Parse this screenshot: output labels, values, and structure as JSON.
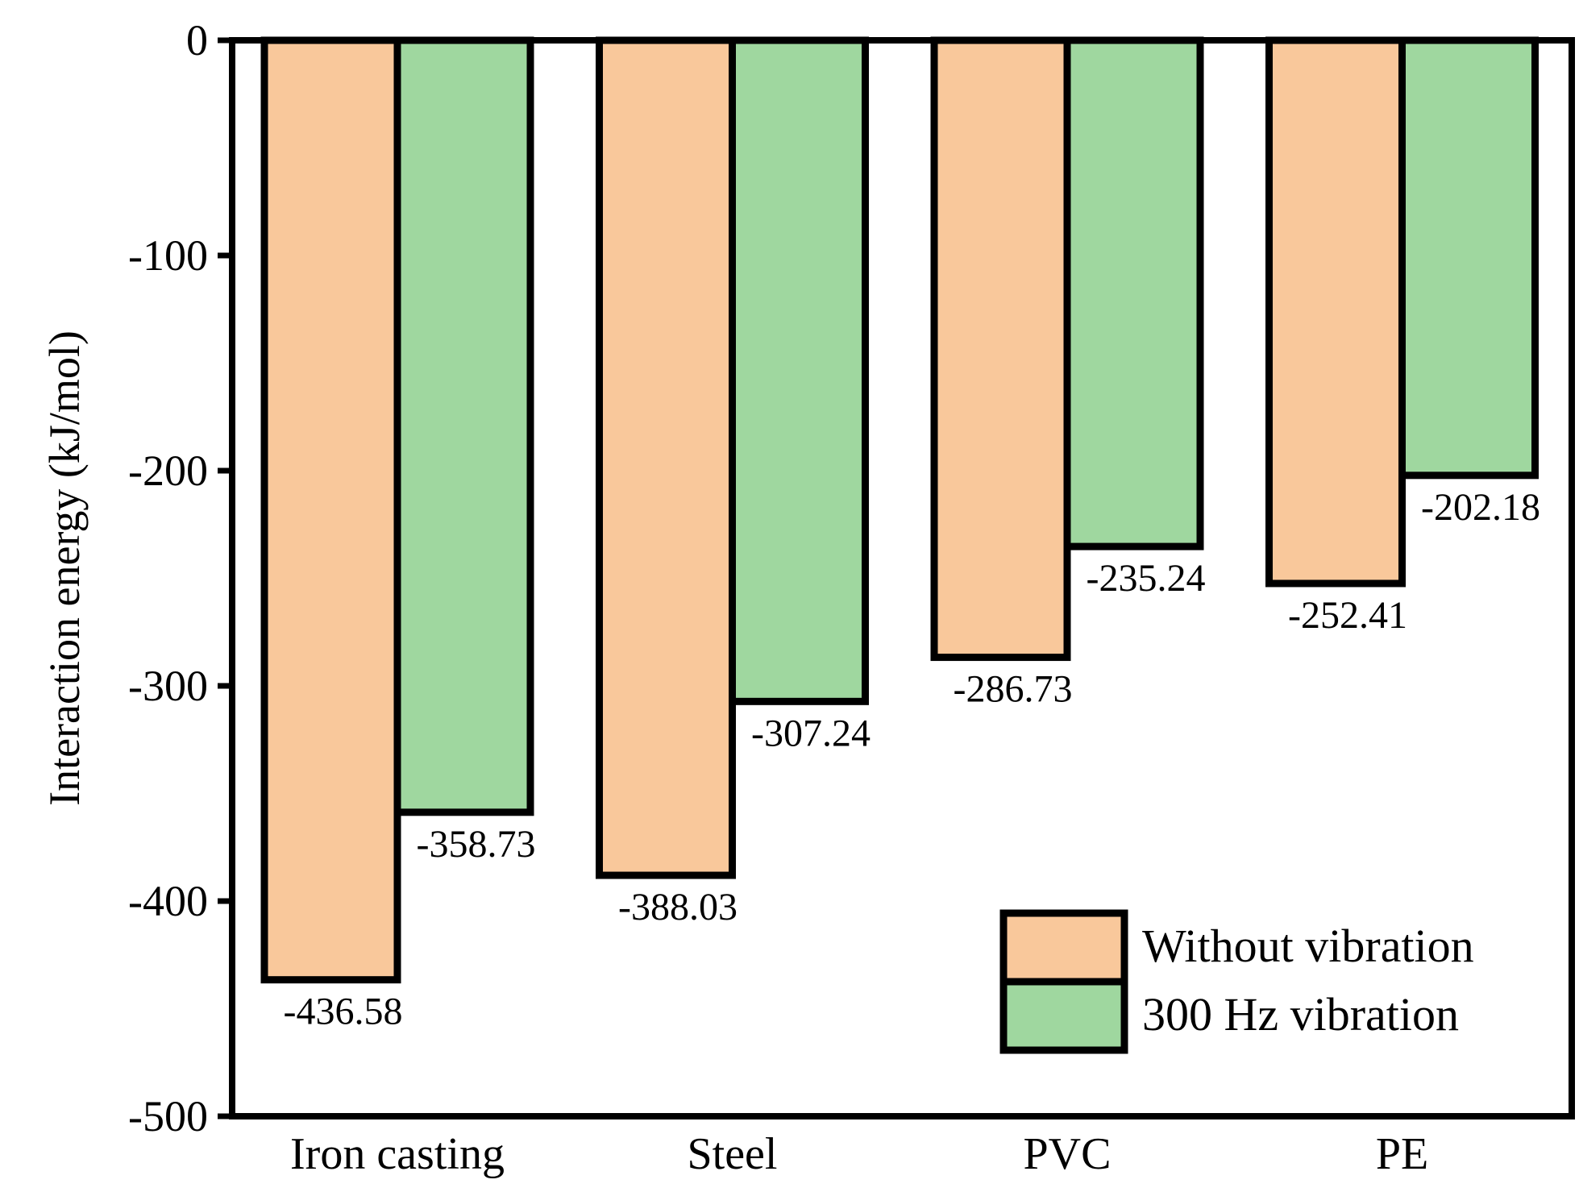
{
  "chart_data": {
    "type": "bar",
    "title": "",
    "xlabel": "",
    "ylabel": "Interaction energy (kJ/mol)",
    "categories": [
      "Iron casting",
      "Steel",
      "PVC",
      "PE"
    ],
    "series": [
      {
        "name": "Without vibration",
        "color": "#F9C89B",
        "values": [
          -436.58,
          -388.03,
          -286.73,
          -252.41
        ],
        "labels": [
          "-436.58",
          "-388.03",
          "-286.73",
          "-252.41"
        ]
      },
      {
        "name": "300 Hz vibration",
        "color": "#9FD79F",
        "values": [
          -358.73,
          -307.24,
          -235.24,
          -202.18
        ],
        "labels": [
          "-358.73",
          "-307.24",
          "-235.24",
          "-202.18"
        ]
      }
    ],
    "ylim": [
      -500,
      0
    ],
    "yticks": [
      0,
      -100,
      -200,
      -300,
      -400,
      -500
    ],
    "ytick_labels": [
      "0",
      "-100",
      "-200",
      "-300",
      "-400",
      "-500"
    ],
    "grid": false,
    "legend_position": "bottom-right"
  }
}
